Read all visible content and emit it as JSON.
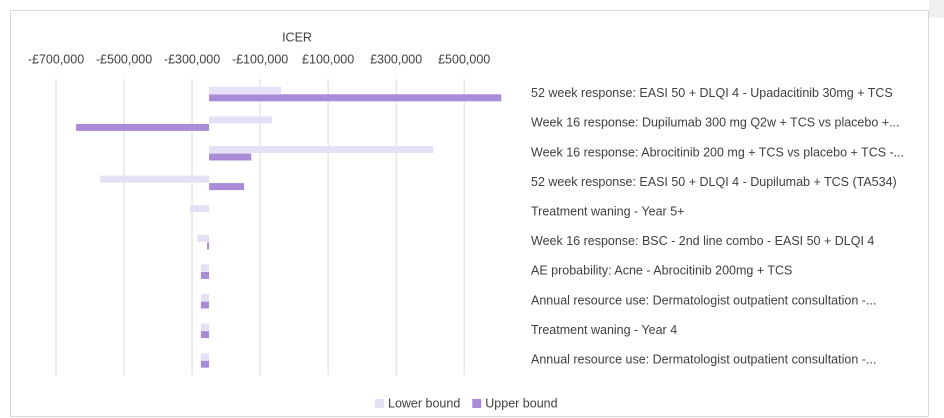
{
  "chart_data": {
    "type": "tornado",
    "title": "ICER",
    "categories": [
      "52 week response: EASI 50 + DLQI 4 - Upadacitinib 30mg + TCS",
      "Week 16 response: Dupilumab 300 mg Q2w + TCS vs placebo +...",
      "Week 16 response: Abrocitinib 200 mg + TCS vs placebo + TCS -...",
      "52 week response: EASI 50 + DLQI 4 - Dupilumab + TCS (TA534)",
      "Treatment waning - Year 5+",
      "Week 16 response: BSC - 2nd line combo - EASI 50 + DLQI 4",
      "AE probability: Acne - Abrocitinib 200mg + TCS",
      "Annual resource use: Dermatologist outpatient consultation -...",
      "Treatment waning - Year 4",
      "Annual resource use: Dermatologist outpatient consultation -..."
    ],
    "series": [
      {
        "name": "Lower bound",
        "color": "#e4e0f5",
        "values": [
          -38000,
          -65000,
          409000,
          -571000,
          -306000,
          -285000,
          -274000,
          -274000,
          -274000,
          -274000
        ]
      },
      {
        "name": "Upper bound",
        "color": "#a98bd8",
        "values": [
          609000,
          -641000,
          -126000,
          -147000,
          -250000,
          -256000,
          -274000,
          -274000,
          -274000,
          -274000
        ]
      }
    ],
    "axis_crosses": -250000,
    "xlim": [
      -800000,
      620000
    ],
    "xticks": [
      {
        "value": -700000,
        "label": "-£700,000"
      },
      {
        "value": -500000,
        "label": "-£500,000"
      },
      {
        "value": -300000,
        "label": "-£300,000"
      },
      {
        "value": -100000,
        "label": "-£100,000"
      },
      {
        "value": 100000,
        "label": "£100,000"
      },
      {
        "value": 300000,
        "label": "£300,000"
      },
      {
        "value": 500000,
        "label": "£500,000"
      }
    ],
    "grid": true,
    "legend": "bottom"
  }
}
